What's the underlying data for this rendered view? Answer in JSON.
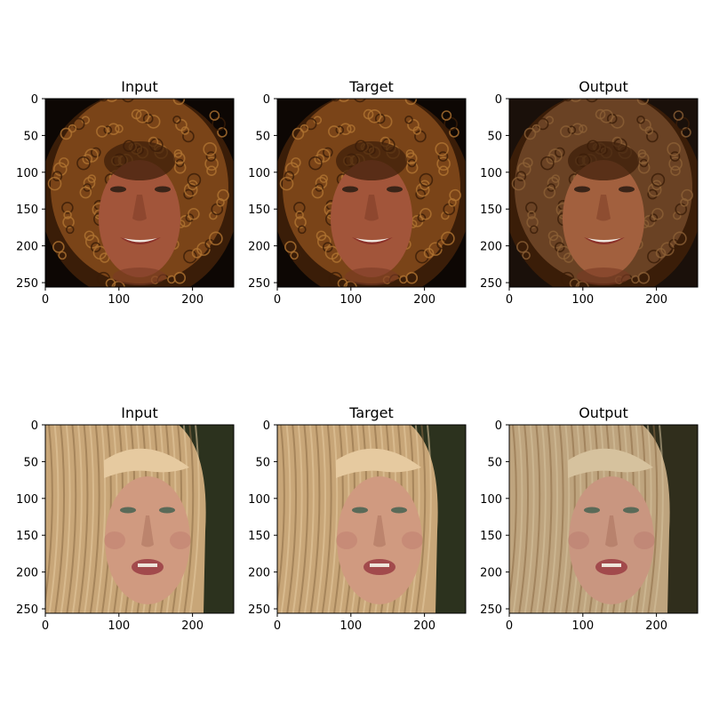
{
  "panels": [
    {
      "row": 0,
      "col": 0,
      "title": "Input",
      "subject": "curly",
      "tone": "input"
    },
    {
      "row": 0,
      "col": 1,
      "title": "Target",
      "subject": "curly",
      "tone": "target"
    },
    {
      "row": 0,
      "col": 2,
      "title": "Output",
      "subject": "curly",
      "tone": "output"
    },
    {
      "row": 1,
      "col": 0,
      "title": "Input",
      "subject": "blonde",
      "tone": "input"
    },
    {
      "row": 1,
      "col": 1,
      "title": "Target",
      "subject": "blonde",
      "tone": "target"
    },
    {
      "row": 1,
      "col": 2,
      "title": "Output",
      "subject": "blonde",
      "tone": "output"
    }
  ],
  "axes": {
    "x_ticks": [
      0,
      100,
      200
    ],
    "y_ticks": [
      0,
      50,
      100,
      150,
      200,
      250
    ],
    "x_range": [
      0,
      256
    ],
    "y_range": [
      0,
      256
    ]
  },
  "palette": {
    "curly": {
      "bg": "#0d0704",
      "hair": "#7a4418",
      "hair_light": "#b07432",
      "hair_dark": "#3a1d08",
      "skin": "#a2553a",
      "skin_dark": "#7a3a24",
      "lip": "#8a3028",
      "teeth": "#efe7df",
      "eye": "#3a2418"
    },
    "blonde": {
      "bg": "#343a22",
      "bg_dark": "#1f2416",
      "hair": "#c8a678",
      "hair_light": "#e6caa0",
      "hair_dark": "#8a6a44",
      "skin": "#d09a80",
      "skin_dark": "#a46a56",
      "lip": "#a24a4c",
      "teeth": "#eee4da",
      "eye": "#5a6a58"
    },
    "output_curly": {
      "hair": "#6a4224",
      "hair_light": "#8c6036",
      "skin": "#a2603e",
      "bg": "#1a100a"
    },
    "output_blonde": {
      "bg": "#39341f",
      "hair": "#bea47e",
      "hair_light": "#d6c29e",
      "skin": "#c99680"
    }
  }
}
